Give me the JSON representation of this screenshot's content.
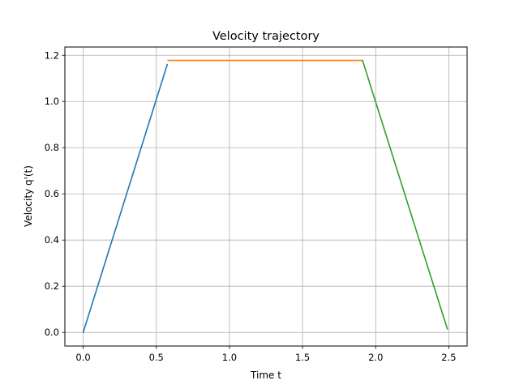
{
  "chart_data": {
    "type": "line",
    "title": "Velocity trajectory",
    "xlabel": "Time t",
    "ylabel": "Velocity q'(t)",
    "xlim": [
      -0.125,
      2.625
    ],
    "ylim": [
      -0.059,
      1.236
    ],
    "xticks": [
      "0.0",
      "0.5",
      "1.0",
      "1.5",
      "2.0",
      "2.5"
    ],
    "yticks": [
      "0.0",
      "0.2",
      "0.4",
      "0.6",
      "0.8",
      "1.0",
      "1.2"
    ],
    "grid": true,
    "series": [
      {
        "color": "#1f77b4",
        "x": [
          0.0,
          0.575
        ],
        "y": [
          0.0,
          1.16
        ]
      },
      {
        "color": "#ff7f0e",
        "x": [
          0.58,
          1.91
        ],
        "y": [
          1.178,
          1.178
        ]
      },
      {
        "color": "#2ca02c",
        "x": [
          1.91,
          2.49
        ],
        "y": [
          1.178,
          0.015
        ]
      }
    ]
  }
}
